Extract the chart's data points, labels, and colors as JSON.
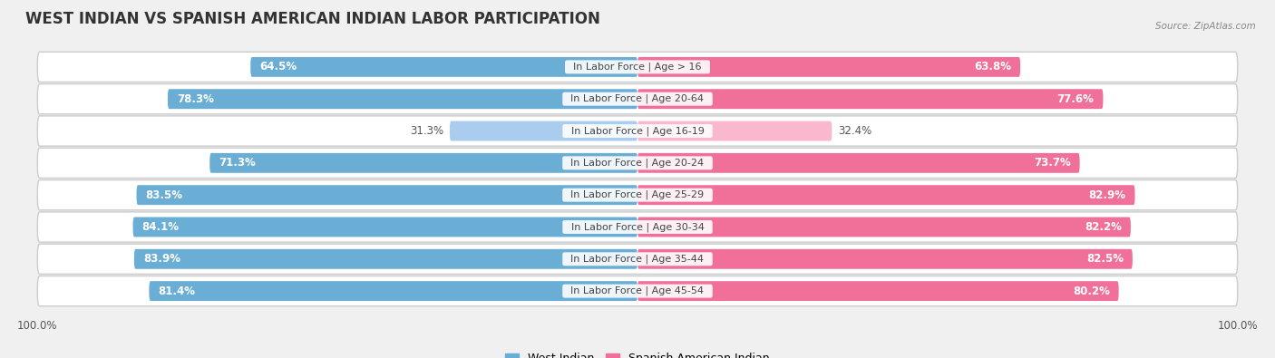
{
  "title": "WEST INDIAN VS SPANISH AMERICAN INDIAN LABOR PARTICIPATION",
  "source": "Source: ZipAtlas.com",
  "categories": [
    "In Labor Force | Age > 16",
    "In Labor Force | Age 20-64",
    "In Labor Force | Age 16-19",
    "In Labor Force | Age 20-24",
    "In Labor Force | Age 25-29",
    "In Labor Force | Age 30-34",
    "In Labor Force | Age 35-44",
    "In Labor Force | Age 45-54"
  ],
  "west_indian": [
    64.5,
    78.3,
    31.3,
    71.3,
    83.5,
    84.1,
    83.9,
    81.4
  ],
  "spanish_american": [
    63.8,
    77.6,
    32.4,
    73.7,
    82.9,
    82.2,
    82.5,
    80.2
  ],
  "west_indian_color": "#6aaed6",
  "spanish_american_color": "#f0709a",
  "west_indian_light_color": "#aaccee",
  "spanish_american_light_color": "#f9b8ce",
  "background_color": "#f0f0f0",
  "row_bg_color": "#e0e0e0",
  "row_inner_color": "#f5f5f5",
  "bar_height": 0.62,
  "legend_labels": [
    "West Indian",
    "Spanish American Indian"
  ],
  "title_fontsize": 12,
  "label_fontsize": 8.0,
  "value_fontsize": 8.5
}
